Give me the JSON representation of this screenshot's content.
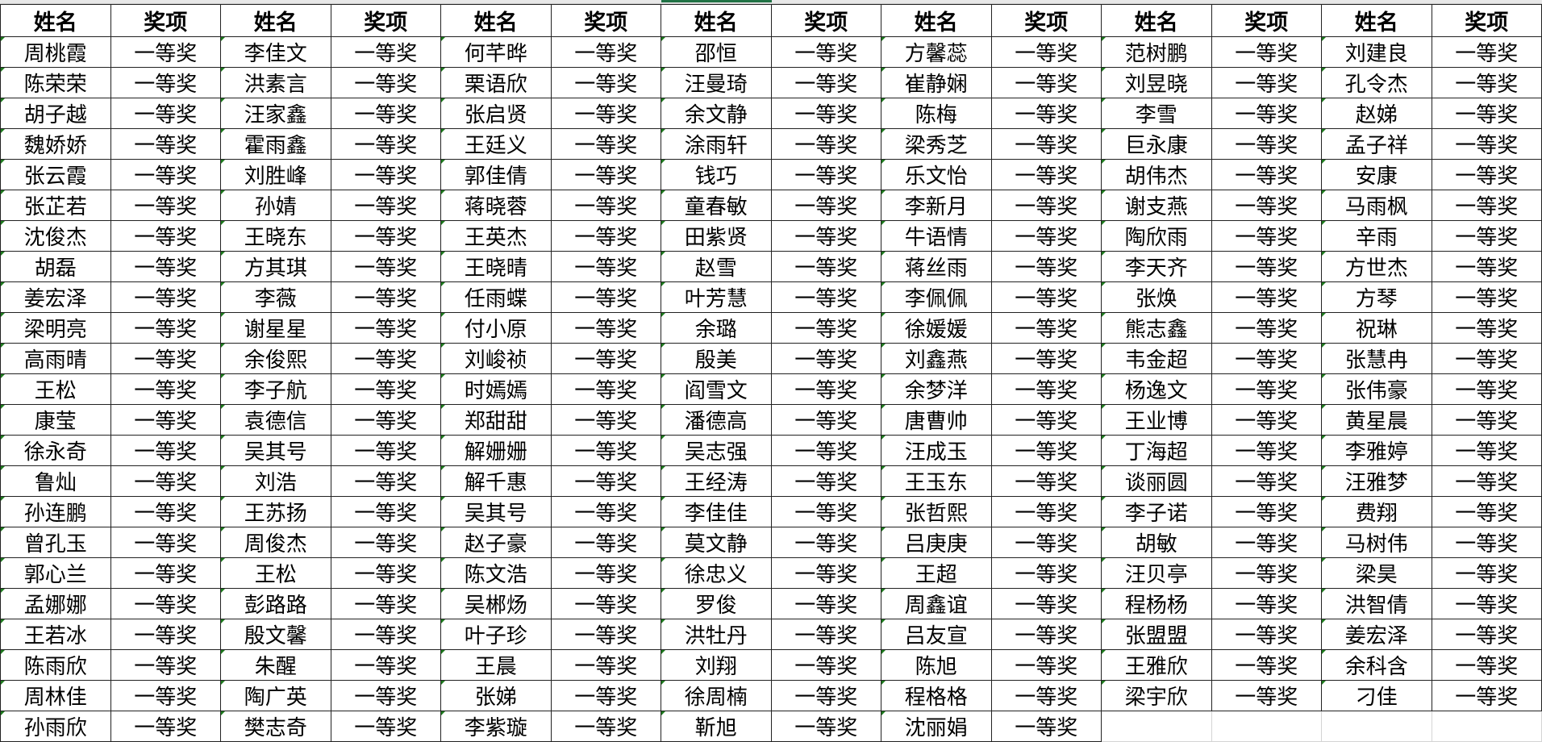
{
  "spreadsheet": {
    "headers": [
      "姓名",
      "奖项",
      "姓名",
      "奖项",
      "姓名",
      "奖项",
      "姓名",
      "奖项",
      "姓名",
      "奖项",
      "姓名",
      "奖项",
      "姓名",
      "奖项"
    ],
    "award": "一等奖",
    "selected_column_color": "#217346",
    "name_columns": [
      [
        "周桃霞",
        "陈荣荣",
        "胡子越",
        "魏娇娇",
        "张云霞",
        "张芷若",
        "沈俊杰",
        "胡磊",
        "姜宏泽",
        "梁明亮",
        "高雨晴",
        "王松",
        "康莹",
        "徐永奇",
        "鲁灿",
        "孙连鹏",
        "曾孔玉",
        "郭心兰",
        "孟娜娜",
        "王若冰",
        "陈雨欣",
        "周林佳",
        "孙雨欣"
      ],
      [
        "李佳文",
        "洪素言",
        "汪家鑫",
        "霍雨鑫",
        "刘胜峰",
        "孙婧",
        "王晓东",
        "方其琪",
        "李薇",
        "谢星星",
        "余俊熙",
        "李子航",
        "袁德信",
        "吴其号",
        "刘浩",
        "王苏扬",
        "周俊杰",
        "王松",
        "彭路路",
        "殷文馨",
        "朱醒",
        "陶广英",
        "樊志奇"
      ],
      [
        "何芊晔",
        "栗语欣",
        "张启贤",
        "王廷义",
        "郭佳倩",
        "蒋晓蓉",
        "王英杰",
        "王晓晴",
        "任雨蝶",
        "付小原",
        "刘峻祯",
        "时嫣嫣",
        "郑甜甜",
        "解姗姗",
        "解千惠",
        "吴其号",
        "赵子豪",
        "陈文浩",
        "吴郴炀",
        "叶子珍",
        "王晨",
        "张娣",
        "李紫璇"
      ],
      [
        "邵恒",
        "汪曼琦",
        "余文静",
        "涂雨轩",
        "钱巧",
        "童春敏",
        "田紫贤",
        "赵雪",
        "叶芳慧",
        "余璐",
        "殷美",
        "阎雪文",
        "潘德高",
        "吴志强",
        "王经涛",
        "李佳佳",
        "莫文静",
        "徐忠义",
        "罗俊",
        "洪牡丹",
        "刘翔",
        "徐周楠",
        "靳旭"
      ],
      [
        "方馨蕊",
        "崔静娴",
        "陈梅",
        "梁秀芝",
        "乐文怡",
        "李新月",
        "牛语情",
        "蒋丝雨",
        "李佩佩",
        "徐媛媛",
        "刘鑫燕",
        "余梦洋",
        "唐曹帅",
        "汪成玉",
        "王玉东",
        "张哲熙",
        "吕庚庚",
        "王超",
        "周鑫谊",
        "吕友宣",
        "陈旭",
        "程格格",
        "沈丽娟"
      ],
      [
        "范树鹏",
        "刘昱晓",
        "李雪",
        "巨永康",
        "胡伟杰",
        "谢支燕",
        "陶欣雨",
        "李天齐",
        "张焕",
        "熊志鑫",
        "韦金超",
        "杨逸文",
        "王业博",
        "丁海超",
        "谈丽圆",
        "李子诺",
        "胡敏",
        "汪贝亭",
        "程杨杨",
        "张盟盟",
        "王雅欣",
        "梁宇欣"
      ],
      [
        "刘建良",
        "孔令杰",
        "赵娣",
        "孟子祥",
        "安康",
        "马雨枫",
        "辛雨",
        "方世杰",
        "方琴",
        "祝琳",
        "张慧冉",
        "张伟豪",
        "黄星晨",
        "李雅婷",
        "汪雅梦",
        "费翔",
        "马树伟",
        "梁昊",
        "洪智倩",
        "姜宏泽",
        "余科含",
        "刁佳"
      ]
    ]
  }
}
